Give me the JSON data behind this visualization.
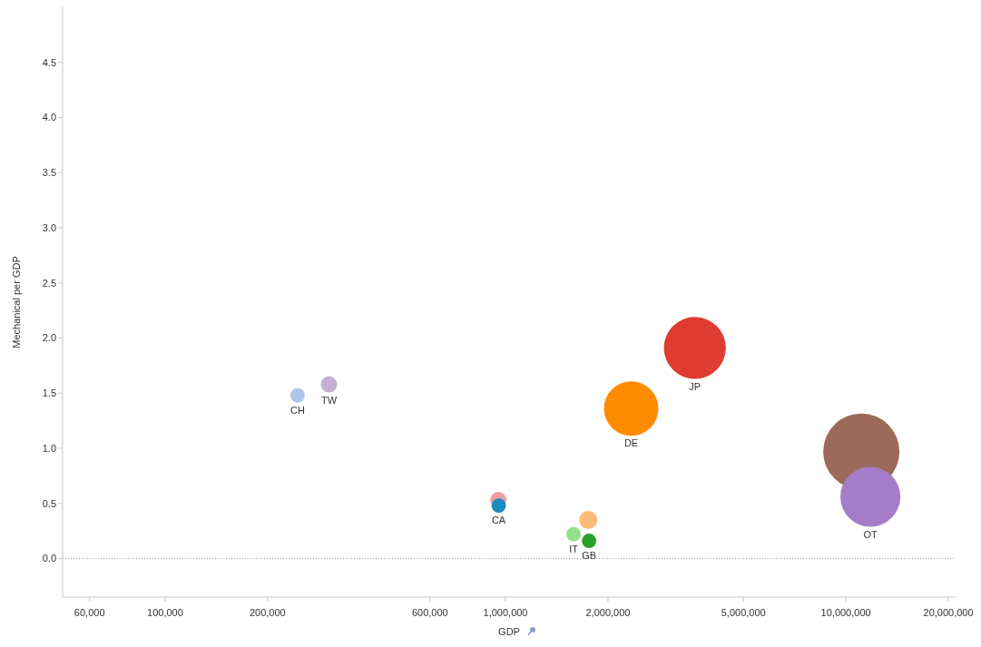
{
  "chart_data": {
    "type": "bubble",
    "xlabel": "GDP",
    "ylabel": "Mechanical per GDP",
    "log": "x",
    "marker": "circle",
    "xlim": [
      50000,
      21000000
    ],
    "xticks": [
      {
        "value": 60000,
        "label": "60,000"
      },
      {
        "value": 100000,
        "label": "100,000"
      },
      {
        "value": 200000,
        "label": "200,000"
      },
      {
        "value": 600000,
        "label": "600,000"
      },
      {
        "value": 1000000,
        "label": "1,000,000"
      },
      {
        "value": 2000000,
        "label": "2,000,000"
      },
      {
        "value": 5000000,
        "label": "5,000,000"
      },
      {
        "value": 10000000,
        "label": "10,000,000"
      },
      {
        "value": 20000000,
        "label": "20,000,000"
      }
    ],
    "ylim": [
      -0.35,
      5
    ],
    "yticks": [
      {
        "value": 0,
        "label": "0.0"
      },
      {
        "value": 0.5,
        "label": "0.5"
      },
      {
        "value": 1,
        "label": "1.0"
      },
      {
        "value": 1.5,
        "label": "1.5"
      },
      {
        "value": 2,
        "label": "2.0"
      },
      {
        "value": 2.5,
        "label": "2.5"
      },
      {
        "value": 3,
        "label": "3.0"
      },
      {
        "value": 3.5,
        "label": "3.5"
      },
      {
        "value": 4,
        "label": "4.0"
      },
      {
        "value": 4.5,
        "label": "4.5"
      }
    ],
    "ref_lines": [
      {
        "axis": "y",
        "value": 0,
        "color": "#999999",
        "line_style": "dotted"
      }
    ],
    "series": [
      {
        "color": "#9c6a5a",
        "x": [
          11100000
        ],
        "values": [
          0.97
        ],
        "sizes": [
          1
        ]
      },
      {
        "name": "JP",
        "color": "#e03c31",
        "x": [
          3600000
        ],
        "values": [
          1.91
        ],
        "sizes": [
          0.66
        ]
      },
      {
        "name": "OT",
        "color": "#a57cc8",
        "x": [
          11800000
        ],
        "values": [
          0.56
        ],
        "sizes": [
          0.62
        ]
      },
      {
        "name": "DE",
        "color": "#ff8c00",
        "x": [
          2340000
        ],
        "values": [
          1.36
        ],
        "sizes": [
          0.51
        ]
      },
      {
        "name": "CH",
        "color": "#aec7e8",
        "x": [
          245000
        ],
        "values": [
          1.48
        ],
        "sizes": [
          0.036
        ]
      },
      {
        "name": "TW",
        "color": "#c5b0d5",
        "x": [
          303000
        ],
        "values": [
          1.58
        ],
        "sizes": [
          0.046
        ]
      },
      {
        "color": "#f0a0a0",
        "x": [
          953000
        ],
        "values": [
          0.53
        ],
        "sizes": [
          0.046
        ]
      },
      {
        "name": "CA",
        "color": "#1f8ac0",
        "x": [
          955000
        ],
        "values": [
          0.48
        ],
        "sizes": [
          0.036
        ]
      },
      {
        "name": "IT",
        "color": "#98df8a",
        "x": [
          1585000
        ],
        "values": [
          0.22
        ],
        "sizes": [
          0.036
        ]
      },
      {
        "color": "#ffbb78",
        "x": [
          1750000
        ],
        "values": [
          0.35
        ],
        "sizes": [
          0.057
        ]
      },
      {
        "name": "GB",
        "color": "#2ca02c",
        "x": [
          1760000
        ],
        "values": [
          0.16
        ],
        "sizes": [
          0.036
        ]
      }
    ]
  }
}
